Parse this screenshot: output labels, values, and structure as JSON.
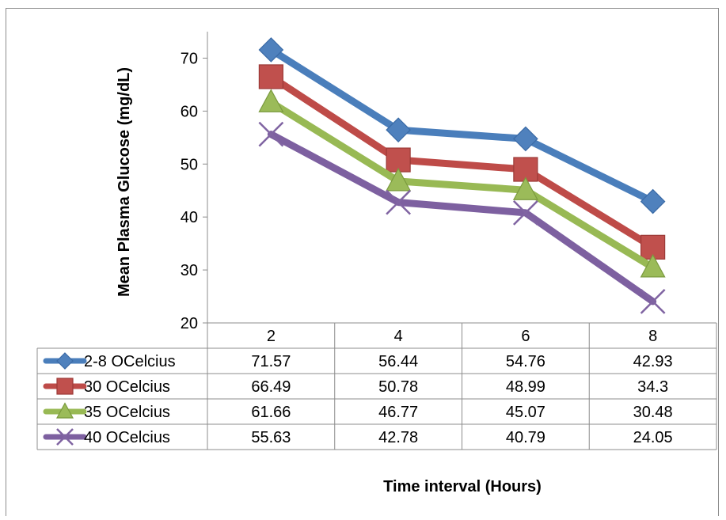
{
  "chart_data": {
    "type": "line",
    "categories": [
      "2",
      "4",
      "6",
      "8"
    ],
    "series": [
      {
        "name": "2-8 OCelcius",
        "values": [
          71.57,
          56.44,
          54.76,
          42.93
        ],
        "color": "#4a7ebb",
        "fill": "#4f81bd",
        "marker": "diamond"
      },
      {
        "name": "30 OCelcius",
        "values": [
          66.49,
          50.78,
          48.99,
          34.3
        ],
        "color": "#be4b48",
        "fill": "#c0504d",
        "marker": "square"
      },
      {
        "name": "35 OCelcius",
        "values": [
          61.66,
          46.77,
          45.07,
          30.48
        ],
        "color": "#98b954",
        "fill": "#9bbb59",
        "marker": "triangle"
      },
      {
        "name": "40 OCelcius",
        "values": [
          55.63,
          42.78,
          40.79,
          24.05
        ],
        "color": "#7d60a0",
        "fill": "#8064a2",
        "marker": "x"
      }
    ],
    "value_labels": [
      [
        "71.57",
        "56.44",
        "54.76",
        "42.93"
      ],
      [
        "66.49",
        "50.78",
        "48.99",
        "34.3"
      ],
      [
        "61.66",
        "46.77",
        "45.07",
        "30.48"
      ],
      [
        "55.63",
        "42.78",
        "40.79",
        "24.05"
      ]
    ],
    "y_ticks": [
      "20",
      "30",
      "40",
      "50",
      "60",
      "70"
    ],
    "ylim": [
      20,
      75
    ],
    "xlabel": "Time interval (Hours)",
    "ylabel": "Mean Plasma Glucose (mg/dL)",
    "legend": "data-table",
    "grid": false
  }
}
